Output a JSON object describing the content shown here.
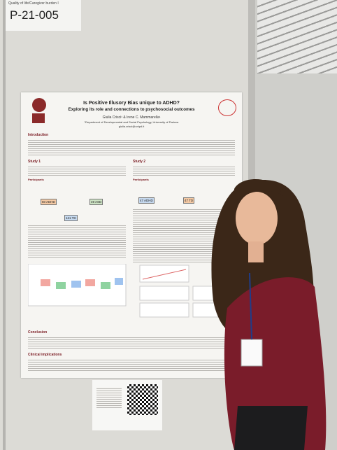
{
  "label": {
    "topic": "Quality of life/Caregiver burden I",
    "code": "P-21-005"
  },
  "poster": {
    "title": "Is Positive Illusory Bias unique to ADHD?",
    "subtitle": "Exploring its role and connections to psychosocial outcomes",
    "authors": "Giulia Crisci¹ & Irene C. Mammarella¹",
    "affiliation": "¹Department of Developmental and Social Psychology, University of Padova",
    "email": "giulia.crisci@unipd.it",
    "sections": {
      "introduction": "Introduction",
      "study1": "Study 1",
      "study2": "Study 2",
      "participants1": "Participants",
      "participants2": "Participants",
      "conclusion": "Conclusion",
      "clinical": "Clinical implications"
    },
    "groups1": [
      "50 ADHD",
      "49 ASD",
      "121 TD"
    ],
    "groups2": [
      "47 ADHD",
      "47 TD"
    ]
  }
}
